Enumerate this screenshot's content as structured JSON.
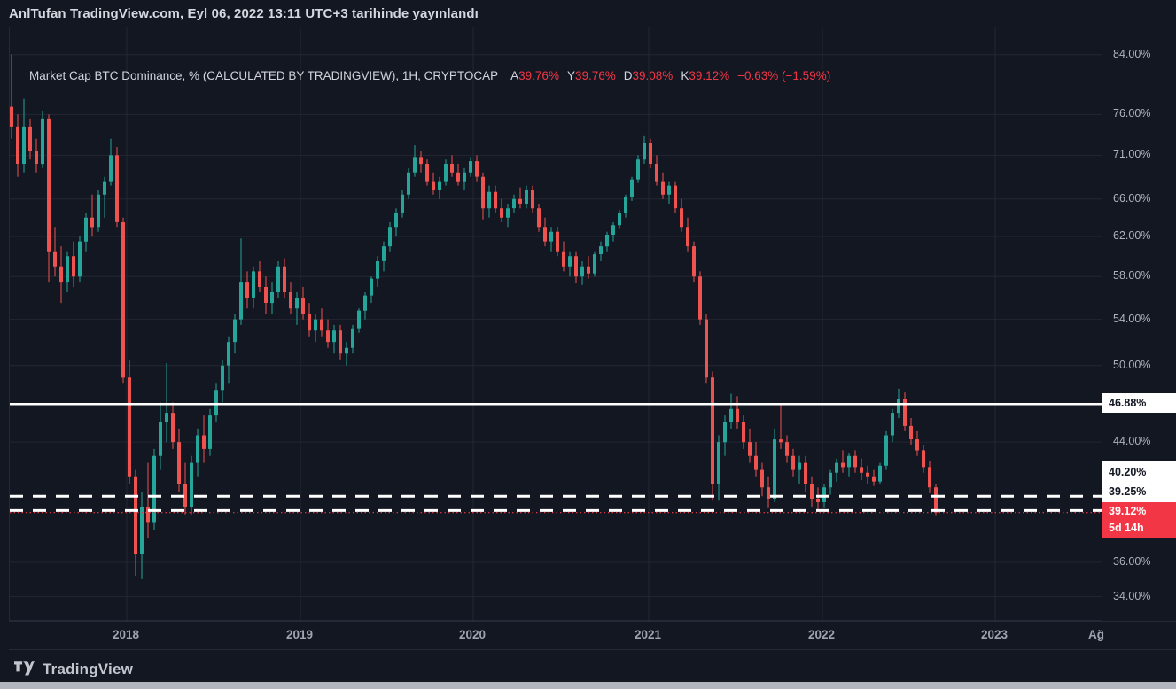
{
  "header": {
    "published": "AnlTufan TradingView.com, Eyl 06, 2022 13:11 UTC+3 tarihinde yayınlandı"
  },
  "legend": {
    "title": "Market Cap BTC Dominance, % (CALCULATED BY TRADINGVIEW), 1H, CRYPTOCAP",
    "values": [
      {
        "label": "A",
        "value": "39.76%"
      },
      {
        "label": "Y",
        "value": "39.76%"
      },
      {
        "label": "D",
        "value": "39.08%"
      },
      {
        "label": "K",
        "value": "39.12%"
      }
    ],
    "change": "−0.63% (−1.59%)"
  },
  "price_axis": {
    "ticks": [
      {
        "label": "84.00%",
        "value": 84
      },
      {
        "label": "76.00%",
        "value": 76
      },
      {
        "label": "71.00%",
        "value": 71
      },
      {
        "label": "66.00%",
        "value": 66
      },
      {
        "label": "62.00%",
        "value": 62
      },
      {
        "label": "58.00%",
        "value": 58
      },
      {
        "label": "54.00%",
        "value": 54
      },
      {
        "label": "50.00%",
        "value": 50
      },
      {
        "label": "44.00%",
        "value": 44
      },
      {
        "label": "36.00%",
        "value": 36
      },
      {
        "label": "34.00%",
        "value": 34
      }
    ],
    "level_labels": {
      "resistance": {
        "text": "46.88%",
        "value": 46.88
      },
      "upper_dashed": {
        "text": "40.20%",
        "value": 40.2
      },
      "lower_dashed": {
        "text": "39.25%",
        "value": 39.25
      }
    },
    "price_badge": {
      "price": "39.12%",
      "countdown": "5d 14h"
    }
  },
  "time_axis": {
    "labels": [
      "2018",
      "2019",
      "2020",
      "2021",
      "2022",
      "2023",
      "Ağ"
    ]
  },
  "footer": {
    "brand": "TradingView"
  },
  "colors": {
    "background": "#131722",
    "up": "#26a69a",
    "down": "#ef5350",
    "accent_red": "#f23645",
    "level_white": "#ffffff",
    "axis_text": "#aeb2bd",
    "legend_text": "#d1d4dc"
  },
  "chart_data": {
    "type": "candlestick",
    "title": "Market Cap BTC Dominance, %",
    "symbol": "CRYPTOCAP",
    "interval": "1H",
    "unit": "%",
    "legend_ohlc": {
      "open": 39.76,
      "high": 39.76,
      "low": 39.08,
      "close": 39.12,
      "change": "−0.63% (−1.59%)"
    },
    "y_axis": {
      "scale": "log",
      "ylim_top": 87.9,
      "ylim_bottom": 32.6,
      "ticks": [
        84,
        76,
        71,
        66,
        62,
        58,
        54,
        50,
        44,
        36,
        34
      ]
    },
    "x_axis": {
      "labels": [
        "2018",
        "2019",
        "2020",
        "2021",
        "2022",
        "2023",
        "Ağ"
      ],
      "grid": true
    },
    "levels": {
      "solid": 46.88,
      "dashed": [
        40.2,
        39.25
      ],
      "last_price": 39.12,
      "countdown": "5d 14h"
    },
    "candles": [
      [
        77,
        84,
        73,
        74.5
      ],
      [
        74.5,
        76,
        68.5,
        70
      ],
      [
        70,
        78,
        69,
        74.5
      ],
      [
        74.5,
        75.5,
        70.5,
        71.5
      ],
      [
        71.5,
        73,
        69,
        70
      ],
      [
        70,
        76.5,
        69.5,
        75.5
      ],
      [
        75.5,
        76,
        57.5,
        60.5
      ],
      [
        60.5,
        63,
        58,
        59
      ],
      [
        59,
        61,
        55.5,
        57.5
      ],
      [
        57.5,
        60.5,
        56.5,
        60
      ],
      [
        60,
        61.5,
        57,
        58
      ],
      [
        58,
        62,
        57.5,
        61.5
      ],
      [
        61.5,
        64.5,
        60.5,
        64
      ],
      [
        64,
        66.5,
        62,
        63
      ],
      [
        63,
        67,
        62.5,
        66.5
      ],
      [
        66.5,
        68.5,
        64,
        68
      ],
      [
        68,
        73,
        67.5,
        71
      ],
      [
        71,
        72,
        63,
        63.5
      ],
      [
        63.5,
        64,
        48.5,
        49
      ],
      [
        49,
        50.5,
        41,
        41.5
      ],
      [
        41.5,
        42,
        35.2,
        36.5
      ],
      [
        36.5,
        40.5,
        35,
        39.5
      ],
      [
        39.5,
        42.5,
        37.5,
        38.5
      ],
      [
        38.5,
        43.5,
        38,
        43
      ],
      [
        43,
        47,
        42,
        45.5
      ],
      [
        45.5,
        50.2,
        44,
        46.2
      ],
      [
        46.2,
        47,
        43.5,
        44
      ],
      [
        44,
        45,
        40.5,
        41
      ],
      [
        41,
        42.5,
        39,
        39.5
      ],
      [
        39.5,
        43,
        39,
        42.5
      ],
      [
        42.5,
        45,
        41.5,
        44.5
      ],
      [
        44.5,
        46,
        42.5,
        43.5
      ],
      [
        43.5,
        46.5,
        43,
        46
      ],
      [
        46,
        48.5,
        45.5,
        48
      ],
      [
        48,
        50.5,
        47,
        50
      ],
      [
        50,
        52.5,
        48.5,
        52
      ],
      [
        52,
        54.5,
        51,
        54
      ],
      [
        54,
        61.8,
        53.5,
        57.5
      ],
      [
        57.5,
        58.5,
        55,
        56
      ],
      [
        56,
        59,
        55,
        58.5
      ],
      [
        58.5,
        59.5,
        56.5,
        57
      ],
      [
        57,
        58,
        54.5,
        55.5
      ],
      [
        55.5,
        57.5,
        54.5,
        56.5
      ],
      [
        56.5,
        59.5,
        56,
        59
      ],
      [
        59,
        59.8,
        56,
        56.5
      ],
      [
        56.5,
        57.5,
        54.5,
        55
      ],
      [
        55,
        56.5,
        53.5,
        56
      ],
      [
        56,
        57,
        54,
        54.5
      ],
      [
        54.5,
        55.5,
        52.5,
        53
      ],
      [
        53,
        54.5,
        52,
        54
      ],
      [
        54,
        55,
        52.5,
        53
      ],
      [
        53,
        54,
        51.5,
        52
      ],
      [
        52,
        53.5,
        51,
        53
      ],
      [
        53,
        53.5,
        50.5,
        51
      ],
      [
        51,
        52,
        50,
        51.5
      ],
      [
        51.5,
        53.5,
        51,
        53.2
      ],
      [
        53.2,
        55,
        52.8,
        54.8
      ],
      [
        54.8,
        56.5,
        54,
        56.2
      ],
      [
        56.2,
        58,
        55.5,
        57.8
      ],
      [
        57.8,
        60,
        57,
        59.5
      ],
      [
        59.5,
        61.5,
        58.5,
        61
      ],
      [
        61,
        63.5,
        60.5,
        63
      ],
      [
        63,
        65,
        62,
        64.5
      ],
      [
        64.5,
        67,
        64,
        66.5
      ],
      [
        66.5,
        69.5,
        66,
        69
      ],
      [
        69,
        72.2,
        68.5,
        70.8
      ],
      [
        70.8,
        71.5,
        69,
        70
      ],
      [
        70,
        70.5,
        67.5,
        68
      ],
      [
        68,
        69,
        66.5,
        67
      ],
      [
        67,
        68.5,
        66,
        68
      ],
      [
        68,
        70.5,
        67.5,
        70
      ],
      [
        70,
        71,
        68.5,
        69
      ],
      [
        69,
        70,
        67.5,
        68
      ],
      [
        68,
        69.5,
        67,
        69
      ],
      [
        69,
        70.8,
        68.5,
        70.3
      ],
      [
        70.3,
        71,
        68,
        68.5
      ],
      [
        68.5,
        69,
        63.8,
        65
      ],
      [
        65,
        67.5,
        64,
        66.8
      ],
      [
        66.8,
        67.5,
        64.5,
        65
      ],
      [
        65,
        66,
        63.5,
        64
      ],
      [
        64,
        65.5,
        63,
        65
      ],
      [
        65,
        66.5,
        64.5,
        66
      ],
      [
        66,
        67.3,
        65,
        65.5
      ],
      [
        65.5,
        67.5,
        65,
        67
      ],
      [
        67,
        67.5,
        64.5,
        65
      ],
      [
        65,
        65.5,
        62.5,
        63
      ],
      [
        63,
        64,
        61,
        61.5
      ],
      [
        61.5,
        63,
        60.5,
        62.5
      ],
      [
        62.5,
        63,
        60,
        60.5
      ],
      [
        60.5,
        61.5,
        58.5,
        59
      ],
      [
        59,
        60.5,
        58,
        60
      ],
      [
        60,
        60.5,
        57.4,
        58
      ],
      [
        58,
        59.5,
        57.2,
        59
      ],
      [
        59,
        60,
        57.8,
        58.3
      ],
      [
        58.3,
        60.5,
        58,
        60.2
      ],
      [
        60.2,
        61.5,
        59.5,
        61
      ],
      [
        61,
        62.5,
        60.5,
        62.2
      ],
      [
        62.2,
        63.5,
        61.5,
        63.2
      ],
      [
        63.2,
        64.8,
        62.8,
        64.5
      ],
      [
        64.5,
        66.5,
        64,
        66.2
      ],
      [
        66.2,
        68.5,
        65.8,
        68.2
      ],
      [
        68.2,
        71,
        67.8,
        70.5
      ],
      [
        70.5,
        73.3,
        70,
        72.5
      ],
      [
        72.5,
        73,
        69.5,
        70
      ],
      [
        70,
        71,
        67.5,
        68
      ],
      [
        68,
        69,
        66,
        66.5
      ],
      [
        66.5,
        68,
        65.5,
        67.5
      ],
      [
        67.5,
        68,
        64.5,
        65
      ],
      [
        65,
        66,
        62.5,
        63
      ],
      [
        63,
        64,
        60.5,
        61
      ],
      [
        61,
        61.5,
        57.5,
        58
      ],
      [
        58,
        58.5,
        53.5,
        54
      ],
      [
        54,
        54.5,
        48.5,
        49
      ],
      [
        49,
        49.5,
        39.9,
        41
      ],
      [
        41,
        44.5,
        39.9,
        44
      ],
      [
        44,
        46,
        43,
        45.5
      ],
      [
        45.5,
        47.7,
        45,
        46.5
      ],
      [
        46.5,
        47.5,
        45,
        45.5
      ],
      [
        45.5,
        46,
        43.5,
        44
      ],
      [
        44,
        45,
        42.5,
        43
      ],
      [
        43,
        44,
        41.5,
        42
      ],
      [
        42,
        42.5,
        40.2,
        40.8
      ],
      [
        40.8,
        41.5,
        39.4,
        40
      ],
      [
        40,
        45,
        39.8,
        44.2
      ],
      [
        44.2,
        46.9,
        43.5,
        44
      ],
      [
        44,
        44.5,
        42.5,
        43
      ],
      [
        43,
        43.5,
        41.5,
        42
      ],
      [
        42,
        43,
        41,
        42.5
      ],
      [
        42.5,
        43,
        40.5,
        41
      ],
      [
        41,
        41.5,
        39.5,
        40
      ],
      [
        40,
        40.8,
        39.3,
        39.8
      ],
      [
        39.8,
        41,
        39.4,
        40.8
      ],
      [
        40.8,
        42,
        40.3,
        41.8
      ],
      [
        41.8,
        42.8,
        41.2,
        42.5
      ],
      [
        42.5,
        43.4,
        41.8,
        42.2
      ],
      [
        42.2,
        43.2,
        41.5,
        43
      ],
      [
        43,
        43.4,
        41.8,
        42.2
      ],
      [
        42.2,
        42.8,
        41.3,
        41.8
      ],
      [
        41.8,
        42.3,
        41,
        41.5
      ],
      [
        41.5,
        42,
        40.9,
        41.2
      ],
      [
        41.2,
        42.5,
        41,
        42.3
      ],
      [
        42.3,
        44.8,
        42,
        44.5
      ],
      [
        44.5,
        46.5,
        44,
        46.2
      ],
      [
        46.2,
        48.1,
        45.8,
        47.3
      ],
      [
        47.3,
        47.8,
        44.8,
        45.2
      ],
      [
        45.2,
        45.8,
        43.8,
        44.2
      ],
      [
        44.2,
        44.8,
        43,
        43.4
      ],
      [
        43.4,
        43.8,
        41.8,
        42.2
      ],
      [
        42.2,
        42.6,
        40.4,
        40.8
      ],
      [
        40.8,
        41,
        38.9,
        39.12
      ]
    ]
  }
}
